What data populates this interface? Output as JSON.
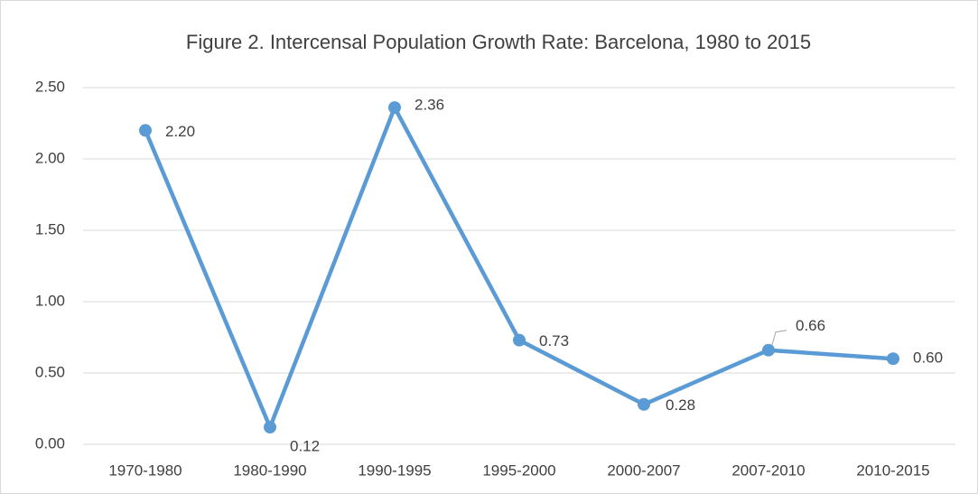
{
  "chart_data": {
    "type": "line",
    "title": "Figure 2. Intercensal Population Growth Rate: Barcelona, 1980 to 2015",
    "categories": [
      "1970-1980",
      "1980-1990",
      "1990-1995",
      "1995-2000",
      "2000-2007",
      "2007-2010",
      "2010-2015"
    ],
    "values": [
      2.2,
      0.12,
      2.36,
      0.73,
      0.28,
      0.66,
      0.6
    ],
    "value_labels": [
      "2.20",
      "0.12",
      "2.36",
      "0.73",
      "0.28",
      "0.66",
      "0.60"
    ],
    "color": "#5b9bd5",
    "ylim": [
      0,
      2.5
    ],
    "yticks": [
      {
        "value": 0,
        "label": "0.00"
      },
      {
        "value": 0.5,
        "label": "0.50"
      },
      {
        "value": 1,
        "label": "1.00"
      },
      {
        "value": 1.5,
        "label": "1.50"
      },
      {
        "value": 2,
        "label": "2.00"
      },
      {
        "value": 2.5,
        "label": "2.50"
      }
    ],
    "grid": true
  }
}
